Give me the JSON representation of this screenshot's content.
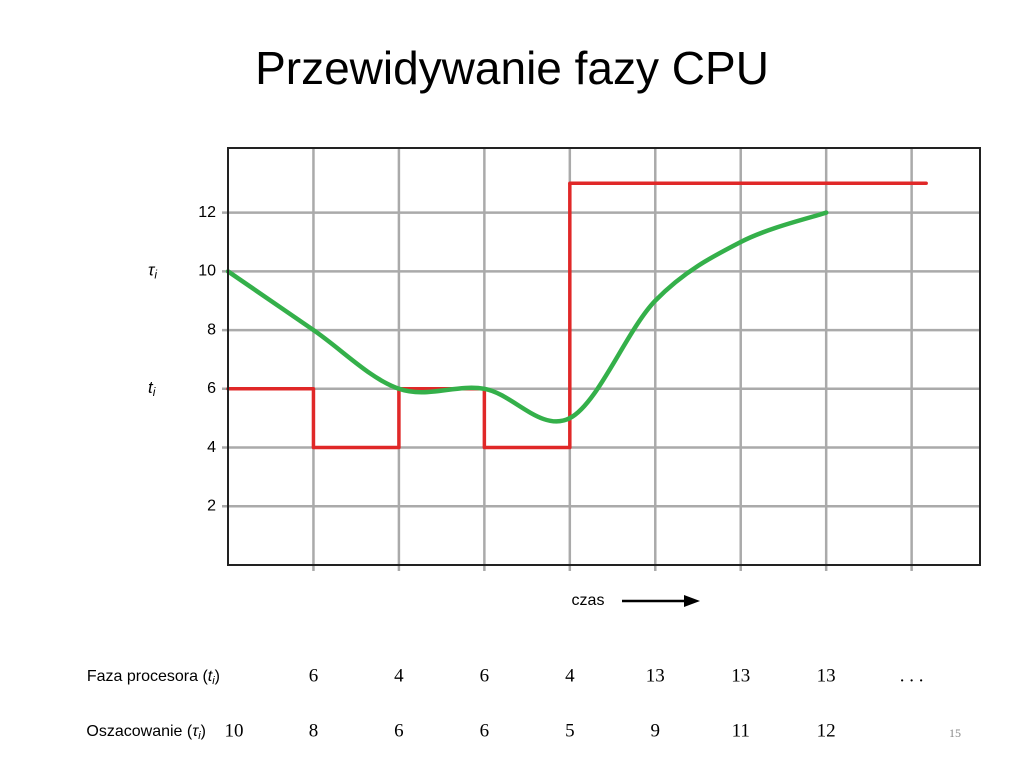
{
  "title": "Przewidywanie fazy CPU",
  "chart_data": {
    "type": "line",
    "xlim": [
      0,
      8.8
    ],
    "ylim": [
      0,
      14.2
    ],
    "yticks": [
      2,
      4,
      6,
      8,
      10,
      12
    ],
    "grid": true,
    "x_label": "czas",
    "series": [
      {
        "name": [
          "t",
          "i"
        ],
        "color": "#e02828",
        "step": true,
        "x": [
          0,
          1,
          2,
          3,
          4,
          5,
          6
        ],
        "values": [
          6,
          4,
          6,
          4,
          13,
          13,
          13
        ]
      },
      {
        "name": [
          "τ",
          "i"
        ],
        "color": "#34b04a",
        "x": [
          0,
          1,
          2,
          3,
          4,
          5,
          6,
          7
        ],
        "values": [
          10,
          8,
          6,
          6,
          5,
          9,
          11,
          12
        ]
      }
    ]
  },
  "table": {
    "rows": [
      {
        "label": [
          "Faza procesora (",
          "t",
          "i",
          ")"
        ],
        "ellipsis": ". . ."
      },
      {
        "label": [
          "Oszacowanie (",
          "τ",
          "i",
          ")"
        ]
      }
    ]
  },
  "page_number": "15"
}
